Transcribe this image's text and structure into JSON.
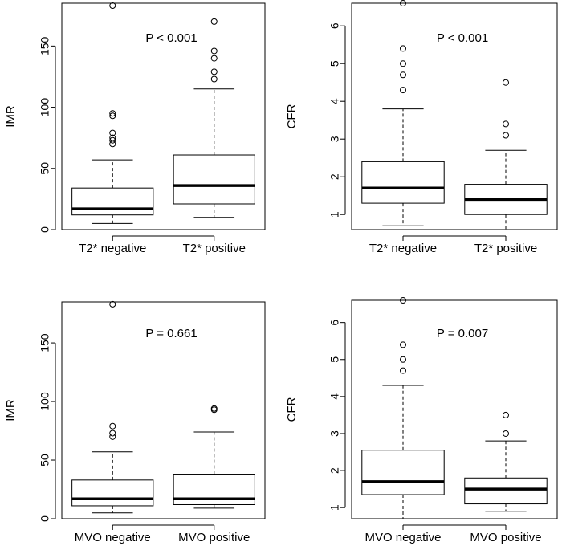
{
  "chart_data": [
    {
      "type": "box",
      "ylabel": "IMR",
      "annotation": "P < 0.001",
      "ylim": [
        0,
        185
      ],
      "yticks": [
        0,
        50,
        100,
        150
      ],
      "ytick_labels": [
        "0",
        "50",
        "100",
        "150"
      ],
      "categories": [
        "T2* negative",
        "T2* positive"
      ],
      "boxes": [
        {
          "label": "T2* negative",
          "whisker_low": 5,
          "q1": 12,
          "median": 17,
          "q3": 34,
          "whisker_high": 57,
          "outliers": [
            70,
            73,
            75,
            79,
            93,
            95,
            183
          ]
        },
        {
          "label": "T2* positive",
          "whisker_low": 10,
          "q1": 21,
          "median": 36,
          "q3": 61,
          "whisker_high": 115,
          "outliers": [
            123,
            129,
            140,
            146,
            170
          ]
        }
      ]
    },
    {
      "type": "box",
      "ylabel": "CFR",
      "annotation": "P < 0.001",
      "ylim": [
        0.6,
        6.6
      ],
      "yticks": [
        1,
        2,
        3,
        4,
        5,
        6
      ],
      "ytick_labels": [
        "1",
        "2",
        "3",
        "4",
        "5",
        "6"
      ],
      "categories": [
        "T2* negative",
        "T2* positive"
      ],
      "boxes": [
        {
          "label": "T2* negative",
          "whisker_low": 0.7,
          "q1": 1.3,
          "median": 1.7,
          "q3": 2.4,
          "whisker_high": 3.8,
          "outliers": [
            4.3,
            4.7,
            5.0,
            5.4,
            6.6
          ]
        },
        {
          "label": "T2* positive",
          "whisker_low": 0.6,
          "q1": 1.0,
          "median": 1.4,
          "q3": 1.8,
          "whisker_high": 2.7,
          "outliers": [
            3.1,
            3.4,
            4.5
          ]
        }
      ]
    },
    {
      "type": "box",
      "ylabel": "IMR",
      "annotation": "P = 0.661",
      "ylim": [
        0,
        185
      ],
      "yticks": [
        0,
        50,
        100,
        150
      ],
      "ytick_labels": [
        "0",
        "50",
        "100",
        "150"
      ],
      "categories": [
        "MVO negative",
        "MVO positive"
      ],
      "boxes": [
        {
          "label": "MVO negative",
          "whisker_low": 5,
          "q1": 11,
          "median": 17,
          "q3": 33,
          "whisker_high": 57,
          "outliers": [
            70,
            73,
            79,
            183
          ]
        },
        {
          "label": "MVO positive",
          "whisker_low": 9,
          "q1": 12,
          "median": 17,
          "q3": 38,
          "whisker_high": 74,
          "outliers": [
            93,
            94
          ]
        }
      ]
    },
    {
      "type": "box",
      "ylabel": "CFR",
      "annotation": "P = 0.007",
      "ylim": [
        0.7,
        6.6
      ],
      "yticks": [
        1,
        2,
        3,
        4,
        5,
        6
      ],
      "ytick_labels": [
        "1",
        "2",
        "3",
        "4",
        "5",
        "6"
      ],
      "categories": [
        "MVO negative",
        "MVO positive"
      ],
      "boxes": [
        {
          "label": "MVO negative",
          "whisker_low": 0.7,
          "q1": 1.35,
          "median": 1.7,
          "q3": 2.55,
          "whisker_high": 4.3,
          "outliers": [
            4.7,
            5.0,
            5.4,
            6.6
          ]
        },
        {
          "label": "MVO positive",
          "whisker_low": 0.9,
          "q1": 1.1,
          "median": 1.5,
          "q3": 1.8,
          "whisker_high": 2.8,
          "outliers": [
            3.0,
            3.5
          ]
        }
      ]
    }
  ]
}
